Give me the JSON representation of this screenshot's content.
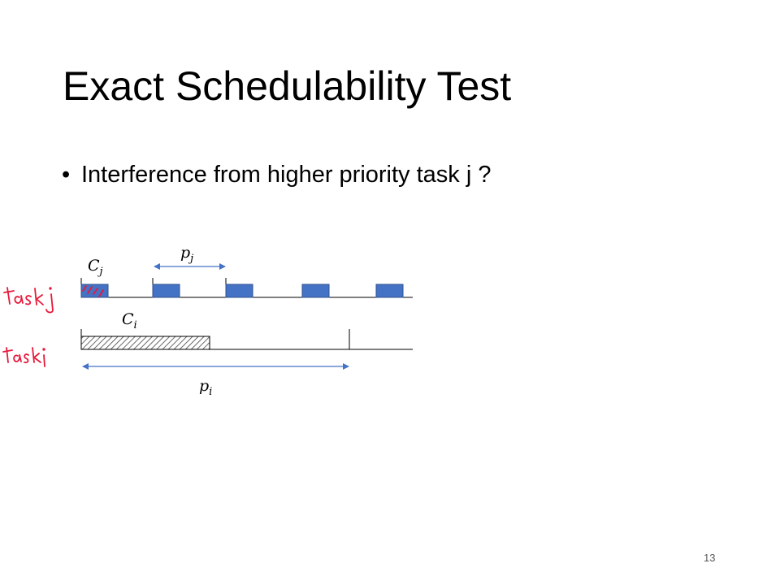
{
  "slide": {
    "title": "Exact Schedulability Test",
    "bullet": {
      "symbol": "•",
      "text": "Interference from higher priority task j ?"
    },
    "page_number": "13"
  },
  "diagram": {
    "labels": {
      "cj": {
        "base": "C",
        "sub": "j"
      },
      "pj": {
        "base": "p",
        "sub": "j"
      },
      "ci": {
        "base": "C",
        "sub": "i"
      },
      "pi": {
        "base": "p",
        "sub": "i"
      }
    },
    "handwritten": {
      "task_j": "task j",
      "task_i": "task i"
    },
    "colors": {
      "job_block_fill": "#4472c4",
      "job_block_stroke": "#2f528f",
      "arrow": "#4472c4",
      "ink": "#e8193c",
      "hatch": "#444444"
    },
    "task_j_job_count": 5
  }
}
